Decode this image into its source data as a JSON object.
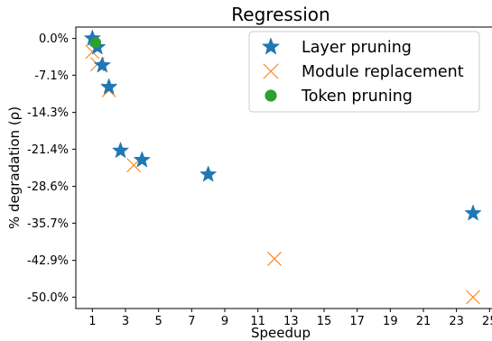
{
  "chart_data": {
    "type": "scatter",
    "title": "Regression",
    "xlabel": "Speedup",
    "ylabel": "% degradation (ρ)",
    "xlim": [
      0,
      25.2
    ],
    "ylim": [
      -52.2,
      2.2
    ],
    "xticks": [
      1,
      3,
      5,
      7,
      9,
      11,
      13,
      15,
      17,
      19,
      21,
      23,
      25
    ],
    "xtick_labels": [
      "1",
      "3",
      "5",
      "7",
      "9",
      "11",
      "13",
      "15",
      "17",
      "19",
      "21",
      "23",
      "25"
    ],
    "yticks": [
      0,
      -7.1,
      -14.3,
      -21.4,
      -28.6,
      -35.7,
      -42.9,
      -50.0
    ],
    "ytick_labels": [
      "0.0%",
      "-7.1%",
      "-14.3%",
      "-21.4%",
      "-28.6%",
      "-35.7%",
      "-42.9%",
      "-50.0%"
    ],
    "grid": false,
    "legend_position": "top-right",
    "series": [
      {
        "name": "Layer pruning",
        "marker": "star",
        "color": "#1f77b4",
        "points": [
          {
            "x": 1.0,
            "y": 0.0
          },
          {
            "x": 1.3,
            "y": -1.7
          },
          {
            "x": 1.6,
            "y": -5.2
          },
          {
            "x": 2.0,
            "y": -9.4
          },
          {
            "x": 2.7,
            "y": -21.7
          },
          {
            "x": 4.0,
            "y": -23.5
          },
          {
            "x": 8.0,
            "y": -26.3
          },
          {
            "x": 24.0,
            "y": -33.8
          }
        ]
      },
      {
        "name": "Module replacement",
        "marker": "x",
        "color": "#ff7f0e",
        "points": [
          {
            "x": 1.0,
            "y": -2.6
          },
          {
            "x": 1.3,
            "y": -5.0
          },
          {
            "x": 2.0,
            "y": -10.0
          },
          {
            "x": 3.5,
            "y": -24.5
          },
          {
            "x": 12.0,
            "y": -42.6
          },
          {
            "x": 24.0,
            "y": -50.0
          }
        ]
      },
      {
        "name": "Token pruning",
        "marker": "circle",
        "color": "#2ca02c",
        "points": [
          {
            "x": 1.2,
            "y": -0.8
          }
        ]
      }
    ]
  }
}
